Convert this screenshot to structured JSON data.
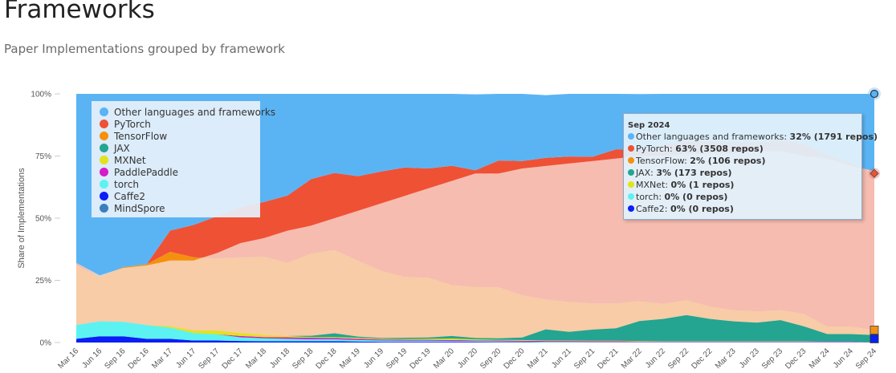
{
  "page": {
    "title": "Frameworks",
    "subtitle": "Paper Implementations grouped by framework"
  },
  "chart_data": {
    "type": "area",
    "stacked": true,
    "normalized": true,
    "ylabel": "Share of Implementations",
    "yticks": [
      "0%",
      "25%",
      "50%",
      "75%",
      "100%"
    ],
    "ylim": [
      0,
      100
    ],
    "grid": false,
    "legend_position": "top-left",
    "x": [
      "Mar 16",
      "Jun 16",
      "Sep 16",
      "Dec 16",
      "Mar 17",
      "Jun 17",
      "Sep 17",
      "Dec 17",
      "Mar 18",
      "Jun 18",
      "Sep 18",
      "Dec 18",
      "Mar 19",
      "Jun 19",
      "Sep 19",
      "Dec 19",
      "Mar 20",
      "Jun 20",
      "Sep 20",
      "Dec 20",
      "Mar 21",
      "Jun 21",
      "Sep 21",
      "Dec 21",
      "Mar 22",
      "Jun 22",
      "Sep 22",
      "Dec 22",
      "Mar 23",
      "Jun 23",
      "Sep 23",
      "Dec 23",
      "Mar 24",
      "Jun 24",
      "Sep 24"
    ],
    "series": [
      {
        "name": "Caffe2",
        "color": "#0a1ef5",
        "values": [
          1.5,
          2.5,
          2.5,
          1.5,
          1.5,
          0.8,
          0.8,
          0.6,
          0.5,
          0.5,
          0.5,
          0.5,
          0.4,
          0.3,
          0.3,
          0.3,
          0.3,
          0.3,
          0.2,
          0.2,
          0.1,
          0.1,
          0.1,
          0.1,
          0.1,
          0.1,
          0.1,
          0.1,
          0.1,
          0.1,
          0.1,
          0.1,
          0.1,
          0.1,
          0
        ]
      },
      {
        "name": "MindSpore",
        "color": "#3a7fbd",
        "values": [
          0,
          0,
          0,
          0,
          0,
          0,
          0,
          0,
          0,
          0,
          0,
          0,
          0,
          0,
          0,
          0,
          0,
          0,
          0,
          0,
          0,
          0,
          0,
          0,
          0,
          0,
          0,
          0,
          0,
          0,
          0,
          0,
          0,
          0,
          0
        ]
      },
      {
        "name": "torch",
        "color": "#5cf2f2",
        "values": [
          5.5,
          6,
          5.8,
          5.5,
          4.5,
          3,
          2.5,
          1.5,
          1.2,
          1,
          0.8,
          0.8,
          0.6,
          0.5,
          0.4,
          0.4,
          0.3,
          0.3,
          0.3,
          0.2,
          0.2,
          0.2,
          0.1,
          0.1,
          0.1,
          0.1,
          0.1,
          0.1,
          0.1,
          0.1,
          0.1,
          0.1,
          0.1,
          0.1,
          0
        ]
      },
      {
        "name": "PaddlePaddle",
        "color": "#d61bc8",
        "values": [
          0,
          0,
          0,
          0,
          0,
          0,
          0,
          0.5,
          0.5,
          0.6,
          0.6,
          0.5,
          0.5,
          0.4,
          0.4,
          0.4,
          0.4,
          0.3,
          0.3,
          0.3,
          0.3,
          0.3,
          0.3,
          0.3,
          0.2,
          0.2,
          0.2,
          0.2,
          0.2,
          0.2,
          0.2,
          0.2,
          0.2,
          0.2,
          0
        ]
      },
      {
        "name": "MXNet",
        "color": "#e2e21d",
        "values": [
          0,
          0,
          0,
          0,
          0.5,
          1,
          1.5,
          1.2,
          0.8,
          0.5,
          0.3,
          0.4,
          0.4,
          0.3,
          0.3,
          0.4,
          0.6,
          0.4,
          0.3,
          0.3,
          0.2,
          0.2,
          0.2,
          0.2,
          0.2,
          0.1,
          0.1,
          0.1,
          0.1,
          0.1,
          0.1,
          0.1,
          0,
          0,
          0
        ]
      },
      {
        "name": "JAX",
        "color": "#23a591",
        "values": [
          0,
          0,
          0,
          0,
          0,
          0,
          0,
          0,
          0,
          0,
          0.5,
          1.5,
          0.5,
          0.3,
          0.5,
          0.5,
          1,
          0.5,
          0.6,
          1,
          4.5,
          3.5,
          4.5,
          5,
          8,
          9,
          10.5,
          9,
          8,
          7.5,
          8.5,
          6,
          3,
          3,
          3
        ]
      },
      {
        "name": "TensorFlow",
        "color": "#f4900e",
        "values": [
          24,
          18,
          22,
          24.5,
          30,
          29.5,
          29,
          30.5,
          31.5,
          29.5,
          33,
          33.5,
          30.5,
          27,
          24.5,
          24,
          20.5,
          20.5,
          20.5,
          17,
          12,
          12,
          10.5,
          10,
          8,
          6,
          6,
          5,
          4.5,
          4.5,
          4,
          5,
          3,
          3,
          2
        ]
      },
      {
        "name": "PyTorch",
        "color": "#ef5135",
        "values": [
          1,
          0,
          0,
          0,
          8.5,
          13,
          17,
          20,
          22,
          27,
          30,
          31,
          34,
          40,
          44,
          44,
          48,
          47,
          51,
          54,
          57,
          58.5,
          59,
          62,
          61,
          64,
          64,
          66.5,
          67.5,
          68,
          68.5,
          68.5,
          69,
          66,
          63
        ]
      },
      {
        "name": "Other languages and frameworks",
        "color": "#5ab4f4",
        "values": [
          68,
          73.5,
          69.7,
          68.5,
          55,
          52.7,
          49.2,
          45.7,
          43.5,
          40.9,
          34.3,
          31.8,
          33.1,
          31.2,
          29.6,
          30,
          28.9,
          30.5,
          26.8,
          27,
          25.2,
          25.2,
          25.3,
          22.3,
          22.3,
          20.5,
          19,
          19,
          19.5,
          19.5,
          18.5,
          20,
          24.6,
          27.6,
          32
        ]
      }
    ],
    "highlight_band": {
      "color": "#f8e0da",
      "values": [
        32,
        27,
        30,
        31,
        33,
        33,
        36,
        40,
        42,
        45,
        47,
        50,
        53,
        56,
        59,
        62,
        65,
        68,
        68,
        70,
        71,
        72,
        73,
        74,
        75,
        75,
        76,
        76,
        76,
        77,
        77,
        75,
        74,
        71,
        69
      ]
    },
    "legend": [
      {
        "label": "Other languages and frameworks",
        "color": "#5ab4f4"
      },
      {
        "label": "PyTorch",
        "color": "#ef5135"
      },
      {
        "label": "TensorFlow",
        "color": "#f4900e"
      },
      {
        "label": "JAX",
        "color": "#23a591"
      },
      {
        "label": "MXNet",
        "color": "#e2e21d"
      },
      {
        "label": "PaddlePaddle",
        "color": "#d61bc8"
      },
      {
        "label": "torch",
        "color": "#5cf2f2"
      },
      {
        "label": "Caffe2",
        "color": "#0a1ef5"
      },
      {
        "label": "MindSpore",
        "color": "#3a7fbd"
      }
    ],
    "tooltip": {
      "header": "Sep 2024",
      "rows": [
        {
          "label": "Other languages and frameworks: ",
          "value": "32% (1791 repos)",
          "color": "#5ab4f4"
        },
        {
          "label": "PyTorch: ",
          "value": "63% (3508 repos)",
          "color": "#ef5135"
        },
        {
          "label": "TensorFlow: ",
          "value": "2% (106 repos)",
          "color": "#f4900e"
        },
        {
          "label": "JAX: ",
          "value": "3% (173 repos)",
          "color": "#23a591"
        },
        {
          "label": "MXNet: ",
          "value": "0% (1 repos)",
          "color": "#e2e21d"
        },
        {
          "label": "torch: ",
          "value": "0% (0 repos)",
          "color": "#5cf2f2"
        },
        {
          "label": "Caffe2: ",
          "value": "0% (0 repos)",
          "color": "#0a1ef5"
        }
      ]
    }
  }
}
